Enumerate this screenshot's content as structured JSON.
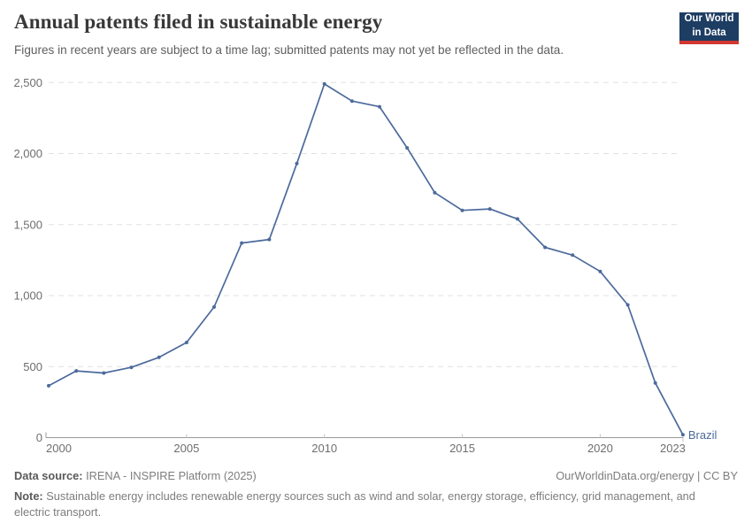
{
  "header": {
    "title": "Annual patents filed in sustainable energy",
    "subtitle": "Figures in recent years are subject to a time lag; submitted patents may not yet be reflected in the data.",
    "logo": {
      "line1": "Our World",
      "line2": "in Data"
    }
  },
  "chart_data": {
    "type": "line",
    "title": "Annual patents filed in sustainable energy",
    "xlabel": "",
    "ylabel": "",
    "xlim": [
      2000,
      2023
    ],
    "ylim": [
      0,
      2500
    ],
    "grid": "horizontal-dashed",
    "legend_position": "end-of-line-label",
    "x_ticks": [
      2000,
      2005,
      2010,
      2015,
      2020,
      2023
    ],
    "y_ticks": [
      0,
      500,
      1000,
      1500,
      2000,
      2500
    ],
    "y_tick_labels": [
      "0",
      "500",
      "1,000",
      "1,500",
      "2,000",
      "2,500"
    ],
    "series": [
      {
        "name": "Brazil",
        "color": "#4c6a9c",
        "x": [
          2000,
          2001,
          2002,
          2003,
          2004,
          2005,
          2006,
          2007,
          2008,
          2009,
          2010,
          2011,
          2012,
          2013,
          2014,
          2015,
          2016,
          2017,
          2018,
          2019,
          2020,
          2021,
          2022,
          2023
        ],
        "values": [
          365,
          470,
          455,
          495,
          565,
          670,
          920,
          1370,
          1395,
          1930,
          2490,
          2370,
          2330,
          2040,
          1725,
          1600,
          1610,
          1540,
          1340,
          1285,
          1170,
          935,
          385,
          20
        ]
      }
    ]
  },
  "footer": {
    "data_source_label": "Data source:",
    "data_source_value": "IRENA - INSPIRE Platform (2025)",
    "attribution": "OurWorldinData.org/energy | CC BY",
    "note_label": "Note:",
    "note_text": "Sustainable energy includes renewable energy sources such as wind and solar, energy storage, efficiency, grid management, and electric transport."
  },
  "colors": {
    "series_blue": "#4c6a9c",
    "logo_navy": "#1d3d63",
    "logo_red": "#d13832",
    "gridline": "#e0e0e0",
    "axis": "#9a9a9a",
    "tick_label": "#6e6e6e"
  }
}
